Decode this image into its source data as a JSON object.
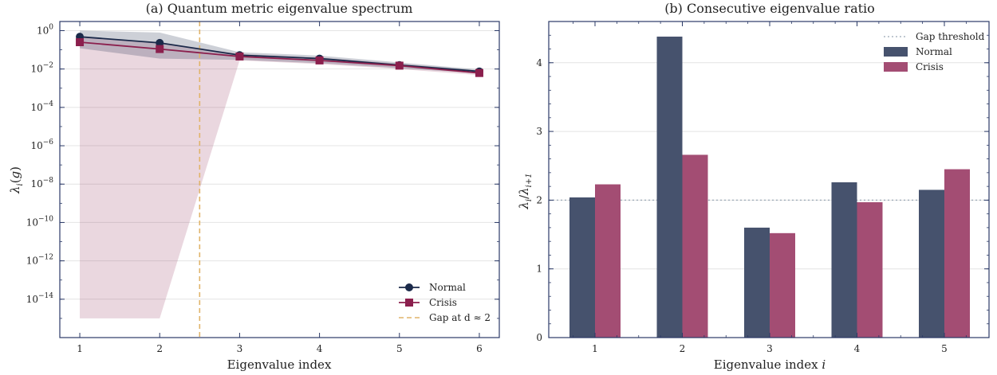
{
  "chart_data": [
    {
      "type": "line",
      "title": "(a) Quantum metric eigenvalue spectrum",
      "xlabel": "Eigenvalue index",
      "ylabel": "λ_i(g)",
      "ylog": true,
      "xlim": [
        0.75,
        6.25
      ],
      "ylim": [
        1e-16,
        3.0
      ],
      "x": [
        1,
        2,
        3,
        4,
        5,
        6
      ],
      "yticks": [
        "10^0",
        "10^-2",
        "10^-4",
        "10^-6",
        "10^-8",
        "10^-10",
        "10^-12",
        "10^-14"
      ],
      "ytick_values": [
        1,
        0.01,
        0.0001,
        1e-06,
        1e-08,
        1e-10,
        1e-12,
        1e-14
      ],
      "series": [
        {
          "name": "Normal",
          "color": "#1b2a4a",
          "marker": "circle",
          "values": [
            0.48,
            0.23,
            0.053,
            0.035,
            0.016,
            0.0075
          ],
          "band_low": [
            0.12,
            0.035,
            0.03,
            0.02,
            0.011,
            0.006
          ],
          "band_high": [
            1.0,
            0.8,
            0.075,
            0.05,
            0.022,
            0.0095
          ]
        },
        {
          "name": "Crisis",
          "color": "#8b1f4d",
          "marker": "square",
          "values": [
            0.25,
            0.11,
            0.045,
            0.028,
            0.015,
            0.0062
          ],
          "band_low": [
            1e-15,
            1e-15,
            0.028,
            0.018,
            0.01,
            0.0048
          ],
          "band_high": [
            0.45,
            0.25,
            0.06,
            0.04,
            0.019,
            0.0082
          ]
        }
      ],
      "vline": {
        "x": 2.5,
        "label": "Gap at d ≈ 2",
        "color": "#e0b46a"
      },
      "legend_position": "bottom-right"
    },
    {
      "type": "bar",
      "title": "(b) Consecutive eigenvalue ratio",
      "xlabel": "Eigenvalue index i",
      "ylabel": "λ_i/λ_{i+1}",
      "categories": [
        "1",
        "2",
        "3",
        "4",
        "5"
      ],
      "ylim": [
        0,
        4.6
      ],
      "yticks": [
        0,
        1,
        2,
        3,
        4
      ],
      "series": [
        {
          "name": "Normal",
          "color": "#46526d",
          "values": [
            2.04,
            4.38,
            1.6,
            2.26,
            2.15
          ]
        },
        {
          "name": "Crisis",
          "color": "#a34d73",
          "values": [
            2.23,
            2.66,
            1.52,
            1.97,
            2.45
          ]
        }
      ],
      "hline": {
        "y": 2.0,
        "label": "Gap threshold",
        "color": "#9aa7b5"
      },
      "legend_position": "top-right"
    }
  ]
}
